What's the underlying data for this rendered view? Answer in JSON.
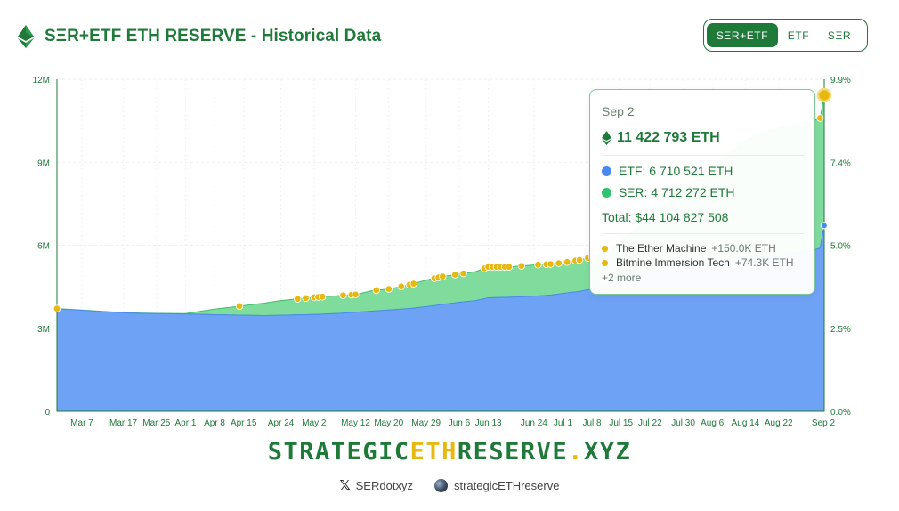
{
  "header": {
    "title": "SΞR+ETF ETH RESERVE - Historical Data"
  },
  "toggle": {
    "options": [
      "SΞR+ETF",
      "ETF",
      "SΞR"
    ],
    "active": "SΞR+ETF"
  },
  "tooltip": {
    "date": "Sep 2",
    "total_eth": "11 422 793 ETH",
    "etf_line": "ETF: 6 710 521 ETH",
    "ser_line": "SΞR: 4 712 272 ETH",
    "total_usd": "Total: $44 104 827 508",
    "buys": [
      {
        "name": "The Ether Machine",
        "amount": "+150.0K ETH"
      },
      {
        "name": "Bitmine Immersion Tech",
        "amount": "+74.3K ETH"
      }
    ],
    "more": "+2 more"
  },
  "colors": {
    "etf": "#4a8af0",
    "ser": "#2fc56c",
    "accent": "#1f7a3a",
    "purchase": "#e6b911"
  },
  "watermark": "STRATEGICETHRESERVE.XYZ",
  "brand": {
    "pre": "STRATEGIC",
    "mid": "ETH",
    "post": "RESERVE",
    "dot": ".",
    "tld": "XYZ"
  },
  "footer": {
    "x_handle": "SERdotxyz",
    "site": "strategicETHreserve"
  },
  "chart_data": {
    "type": "area",
    "stacked": true,
    "y_left": {
      "ticks": [
        "0",
        "3M",
        "6M",
        "9M",
        "12M"
      ],
      "range": [
        0,
        12000000
      ]
    },
    "y_right": {
      "ticks": [
        "0.0%",
        "2.5%",
        "5.0%",
        "7.4%",
        "9.9%"
      ],
      "range": [
        0,
        9.9
      ]
    },
    "x_ticks": [
      "Mar 7",
      "Mar 17",
      "Mar 25",
      "Apr 1",
      "Apr 8",
      "Apr 15",
      "Apr 24",
      "May 2",
      "May 12",
      "May 20",
      "May 29",
      "Jun 6",
      "Jun 13",
      "Jun 24",
      "Jul 1",
      "Jul 8",
      "Jul 15",
      "Jul 22",
      "Jul 30",
      "Aug 6",
      "Aug 14",
      "Aug 22",
      "Sep 2"
    ],
    "x_range": [
      "Mar 1",
      "Sep 2"
    ],
    "series": [
      {
        "name": "ETF",
        "x": [
          "Mar 1",
          "Mar 7",
          "Mar 12",
          "Mar 17",
          "Mar 21",
          "Mar 25",
          "Apr 1",
          "Apr 8",
          "Apr 12",
          "Apr 15",
          "Apr 20",
          "Apr 24",
          "May 2",
          "May 8",
          "May 12",
          "May 16",
          "May 20",
          "May 25",
          "May 29",
          "Jun 2",
          "Jun 6",
          "Jun 10",
          "Jun 13",
          "Jun 18",
          "Jun 24",
          "Jun 28",
          "Jul 1",
          "Jul 5",
          "Jul 8",
          "Jul 12",
          "Jul 15",
          "Jul 18",
          "Jul 22",
          "Jul 26",
          "Jul 30",
          "Aug 2",
          "Aug 6",
          "Aug 10",
          "Aug 14",
          "Aug 18",
          "Aug 22",
          "Aug 26",
          "Aug 30",
          "Sep 1",
          "Sep 2"
        ],
        "values": [
          3700000,
          3650000,
          3600000,
          3560000,
          3540000,
          3530000,
          3520000,
          3490000,
          3480000,
          3470000,
          3460000,
          3470000,
          3500000,
          3540000,
          3580000,
          3620000,
          3660000,
          3710000,
          3780000,
          3860000,
          3940000,
          4000000,
          4100000,
          4120000,
          4160000,
          4200000,
          4260000,
          4330000,
          4420000,
          4580000,
          4780000,
          4950000,
          5100000,
          5220000,
          5280000,
          5330000,
          5370000,
          5420000,
          5480000,
          5560000,
          5640000,
          5720000,
          5800000,
          5900000,
          6710521
        ]
      },
      {
        "name": "SΞR",
        "x": [
          "Mar 1",
          "Mar 7",
          "Mar 12",
          "Mar 17",
          "Mar 21",
          "Mar 25",
          "Apr 1",
          "Apr 8",
          "Apr 12",
          "Apr 15",
          "Apr 20",
          "Apr 24",
          "May 2",
          "May 8",
          "May 12",
          "May 16",
          "May 20",
          "May 25",
          "May 29",
          "Jun 2",
          "Jun 6",
          "Jun 10",
          "Jun 13",
          "Jun 18",
          "Jun 24",
          "Jun 28",
          "Jul 1",
          "Jul 5",
          "Jul 8",
          "Jul 12",
          "Jul 15",
          "Jul 18",
          "Jul 22",
          "Jul 26",
          "Jul 30",
          "Aug 2",
          "Aug 6",
          "Aug 10",
          "Aug 14",
          "Aug 18",
          "Aug 22",
          "Aug 26",
          "Aug 30",
          "Sep 1",
          "Sep 2"
        ],
        "values": [
          10000,
          10000,
          10000,
          10000,
          10000,
          10000,
          10000,
          200000,
          280000,
          350000,
          450000,
          530000,
          620000,
          640000,
          640000,
          740000,
          760000,
          860000,
          960000,
          1010000,
          1020000,
          1050000,
          1120000,
          1100000,
          1130000,
          1120000,
          1110000,
          1140000,
          1150000,
          1200000,
          1400000,
          1600000,
          1900000,
          2300000,
          2700000,
          3100000,
          3500000,
          3900000,
          4300000,
          4500000,
          4600000,
          4650000,
          4680000,
          4700000,
          4712272
        ]
      }
    ],
    "purchases": [
      "Mar 1",
      "Apr 14",
      "Apr 28",
      "Apr 30",
      "May 2",
      "May 3",
      "May 4",
      "May 9",
      "May 11",
      "May 12",
      "May 17",
      "May 20",
      "May 23",
      "May 25",
      "May 26",
      "May 31",
      "Jun 1",
      "Jun 2",
      "Jun 5",
      "Jun 7",
      "Jun 12",
      "Jun 13",
      "Jun 14",
      "Jun 15",
      "Jun 16",
      "Jun 17",
      "Jun 18",
      "Jun 21",
      "Jun 25",
      "Jun 27",
      "Jun 28",
      "Jun 30",
      "Jul 2",
      "Jul 4",
      "Jul 5",
      "Jul 7",
      "Jul 8",
      "Sep 1",
      "Sep 2"
    ]
  }
}
